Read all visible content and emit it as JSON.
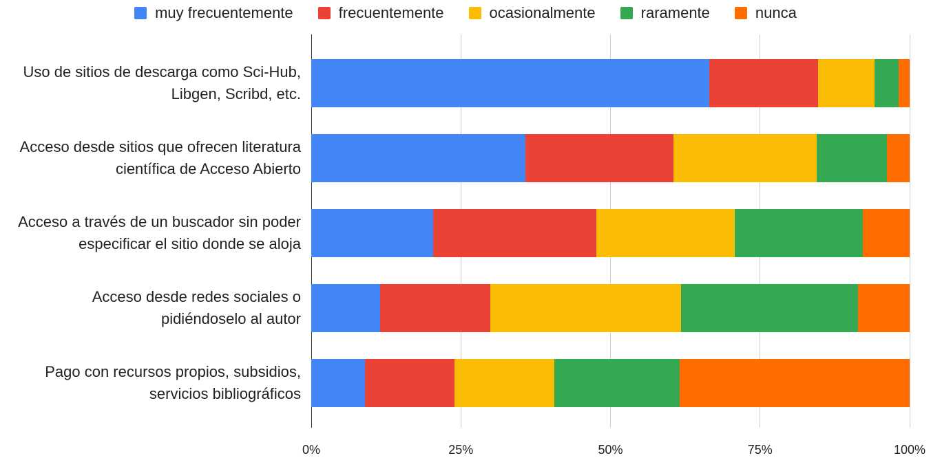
{
  "chart_data": {
    "type": "stacked_bar_horizontal",
    "categories": [
      "Uso de sitios de descarga como Sci-Hub, Libgen, Scribd, etc.",
      "Acceso desde sitios que ofrecen literatura científica de Acceso Abierto",
      "Acceso a través de un buscador sin poder especificar el sitio donde se aloja",
      "Acceso desde redes sociales o pidiéndoselo al autor",
      "Pago con recursos propios, subsidios, servicios bibliográficos"
    ],
    "series": [
      {
        "name": "muy frecuentemente",
        "color": "#4285f4",
        "values": [
          66.5,
          35.8,
          20.4,
          11.5,
          9.0
        ]
      },
      {
        "name": "frecuentemente",
        "color": "#ea4335",
        "values": [
          18.2,
          24.7,
          27.2,
          18.4,
          14.9
        ]
      },
      {
        "name": "ocasionalmente",
        "color": "#fbbc04",
        "values": [
          9.4,
          24.0,
          23.2,
          31.9,
          16.7
        ]
      },
      {
        "name": "raramente",
        "color": "#34a853",
        "values": [
          4.1,
          11.7,
          21.4,
          29.6,
          21.0
        ]
      },
      {
        "name": "nunca",
        "color": "#ff6d01",
        "values": [
          1.8,
          3.8,
          7.8,
          8.6,
          38.4
        ]
      }
    ],
    "xlim": [
      0,
      100
    ],
    "xticks": [
      {
        "value": 0,
        "label": "0%"
      },
      {
        "value": 25,
        "label": "25%"
      },
      {
        "value": 50,
        "label": "50%"
      },
      {
        "value": 75,
        "label": "75%"
      },
      {
        "value": 100,
        "label": "100%"
      }
    ],
    "grid": true,
    "legend": "top"
  }
}
